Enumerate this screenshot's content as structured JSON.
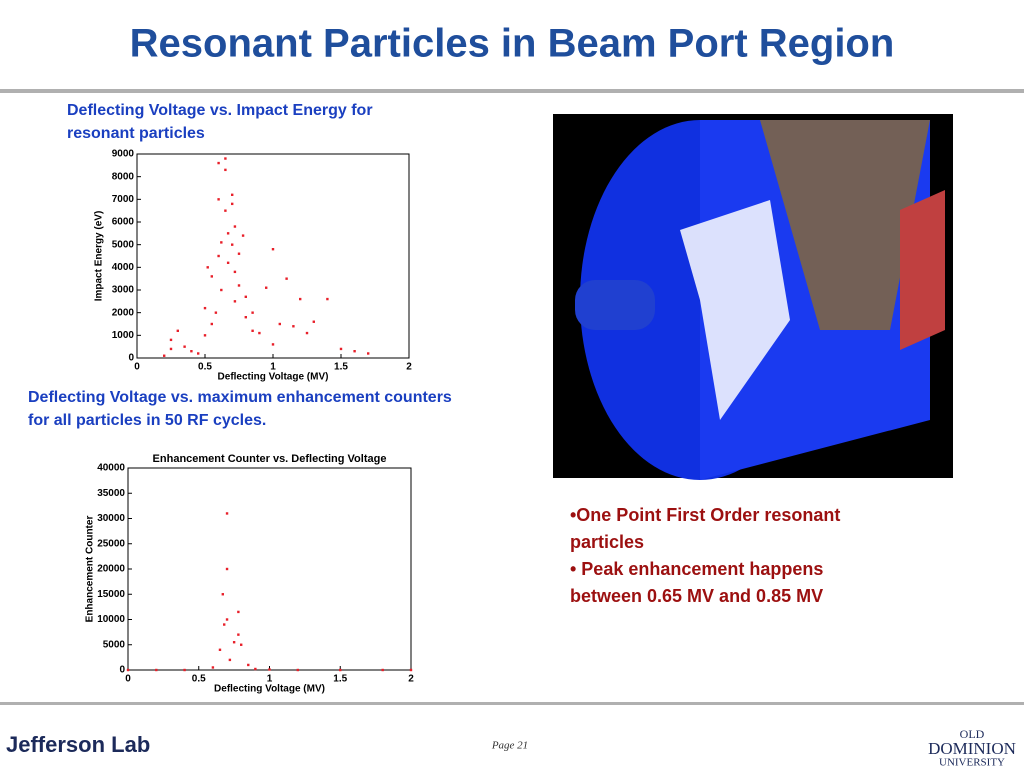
{
  "slide": {
    "title": "Resonant Particles in Beam Port Region",
    "caption1": [
      "Deflecting Voltage vs. Impact Energy for",
      "resonant particles"
    ],
    "caption2": [
      "Deflecting Voltage vs. maximum enhancement counters",
      "for all particles in 50 RF cycles."
    ],
    "bullets": [
      "•One Point First Order resonant",
      "particles",
      "• Peak enhancement happens",
      "between 0.65 MV and 0.85 MV"
    ],
    "footer": {
      "left_logo": "Jefferson Lab",
      "page": "Page 21",
      "right_logo": [
        "OLD",
        "DOMINION",
        "UNIVERSITY"
      ]
    }
  },
  "chart_data": [
    {
      "type": "scatter",
      "x_label": "Deflecting Voltage (MV)",
      "y_label": "Impact Energy (eV)",
      "x": [
        0.2,
        0.25,
        0.25,
        0.3,
        0.35,
        0.4,
        0.45,
        0.5,
        0.5,
        0.52,
        0.55,
        0.55,
        0.58,
        0.6,
        0.6,
        0.6,
        0.62,
        0.62,
        0.65,
        0.65,
        0.65,
        0.67,
        0.67,
        0.7,
        0.7,
        0.7,
        0.72,
        0.72,
        0.72,
        0.75,
        0.75,
        0.78,
        0.8,
        0.8,
        0.85,
        0.85,
        0.9,
        0.95,
        1.0,
        1.0,
        1.05,
        1.1,
        1.15,
        1.2,
        1.25,
        1.3,
        1.4,
        1.5,
        1.6,
        1.7
      ],
      "values": [
        100,
        800,
        400,
        1200,
        500,
        300,
        200,
        2200,
        1000,
        4000,
        3600,
        1500,
        2000,
        8600,
        7000,
        4500,
        5100,
        3000,
        8800,
        8300,
        6500,
        5500,
        4200,
        7200,
        6800,
        5000,
        5800,
        3800,
        2500,
        4600,
        3200,
        5400,
        2700,
        1800,
        2000,
        1200,
        1100,
        3100,
        4800,
        600,
        1500,
        3500,
        1400,
        2600,
        1100,
        1600,
        2600,
        400,
        300,
        200
      ],
      "color": "#e8202a",
      "xlim": [
        0,
        2
      ],
      "xticks": [
        0,
        0.5,
        1,
        1.5,
        2
      ],
      "ylim": [
        0,
        9000
      ],
      "yticks": [
        0,
        1000,
        2000,
        3000,
        4000,
        5000,
        6000,
        7000,
        8000,
        9000
      ]
    },
    {
      "type": "scatter",
      "title": "Enhancement Counter vs. Deflecting Voltage",
      "x_label": "Deflecting Voltage (MV)",
      "y_label": "Enhancement Counter",
      "x": [
        0,
        0.2,
        0.4,
        0.6,
        0.65,
        0.67,
        0.68,
        0.7,
        0.7,
        0.7,
        0.72,
        0.75,
        0.78,
        0.78,
        0.8,
        0.85,
        0.9,
        1.0,
        1.2,
        1.5,
        1.8,
        2.0
      ],
      "values": [
        0,
        0,
        0,
        500,
        4000,
        15000,
        9000,
        31000,
        20000,
        10000,
        2000,
        5500,
        11500,
        7000,
        5000,
        1000,
        200,
        100,
        0,
        0,
        0,
        0
      ],
      "color": "#e8202a",
      "xlim": [
        0,
        2
      ],
      "xticks": [
        0,
        0.5,
        1,
        1.5,
        2
      ],
      "ylim": [
        0,
        40000
      ],
      "yticks": [
        0,
        5000,
        10000,
        15000,
        20000,
        25000,
        30000,
        35000,
        40000
      ]
    }
  ]
}
